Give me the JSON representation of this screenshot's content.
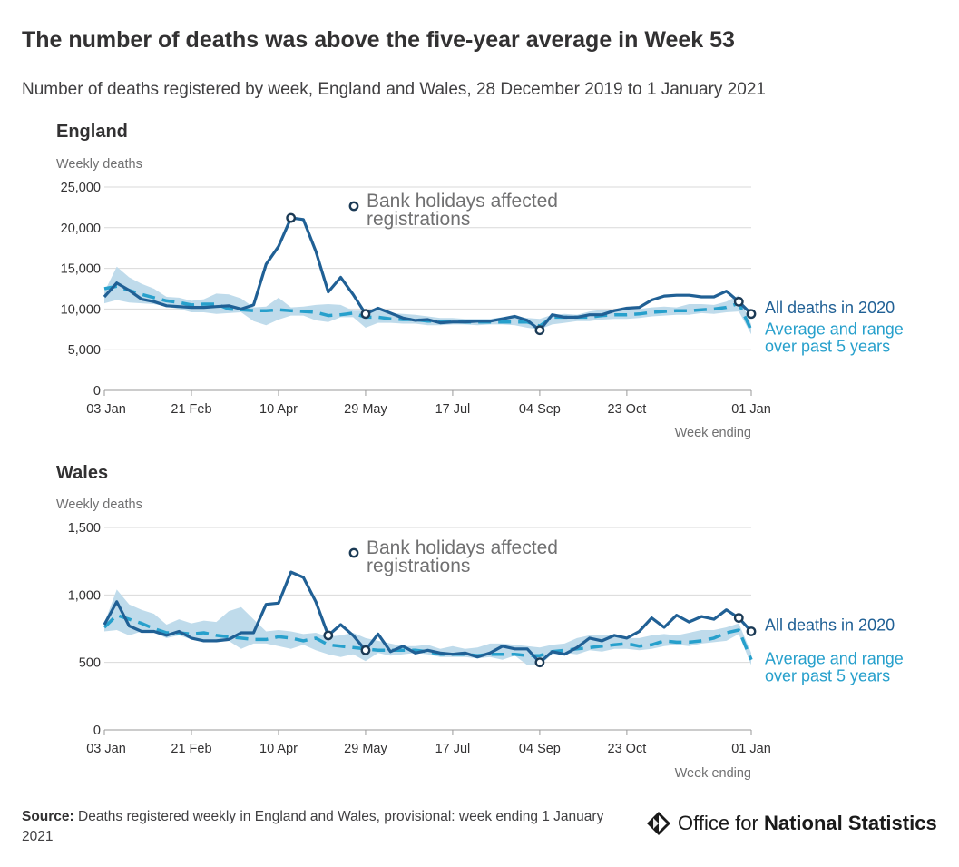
{
  "header": {
    "title": "The number of deaths was above the five-year average in Week 53",
    "subtitle": "Number of deaths registered by week, England and Wales, 28 December 2019 to 1 January 2021"
  },
  "footer": {
    "source_label": "Source:",
    "source_text": "Deaths registered weekly in England and Wales, provisional: week ending 1 January 2021",
    "logo_text_prefix": "Office for ",
    "logo_text_bold": "National Statistics"
  },
  "colors": {
    "main_line": "#206095",
    "average_line": "#27a0cc",
    "range_band": "#bcd9ea",
    "grid": "#d9d9d9"
  },
  "chart_data": [
    {
      "type": "line",
      "title": "England",
      "ylabel": "Weekly deaths",
      "xlabel": "Week ending",
      "ylim": [
        0,
        25000
      ],
      "yticks": [
        0,
        5000,
        10000,
        15000,
        20000,
        25000
      ],
      "ytick_labels": [
        "0",
        "5,000",
        "10,000",
        "15,000",
        "20,000",
        "25,000"
      ],
      "xtick_labels": [
        "03 Jan",
        "21 Feb",
        "10 Apr",
        "29 May",
        "17 Jul",
        "04 Sep",
        "23 Oct",
        "01 Jan"
      ],
      "xtick_weeks": [
        1,
        8,
        15,
        22,
        29,
        36,
        43,
        53
      ],
      "weeks": 53,
      "legend": "inline-right",
      "annotation": "Bank holidays affected registrations",
      "highlighted_weeks": [
        16,
        22,
        36,
        52,
        53
      ],
      "series": [
        {
          "name": "All deaths in 2020",
          "values": [
            11500,
            13200,
            12300,
            11200,
            10900,
            10400,
            10300,
            10200,
            10200,
            10300,
            10400,
            10000,
            10500,
            15500,
            17700,
            21200,
            21000,
            17100,
            12100,
            13900,
            11800,
            9400,
            10100,
            9500,
            8900,
            8600,
            8700,
            8300,
            8400,
            8400,
            8500,
            8500,
            8800,
            9100,
            8600,
            7400,
            9300,
            9000,
            9000,
            9300,
            9300,
            9800,
            10100,
            10200,
            11100,
            11600,
            11700,
            11700,
            11500,
            11500,
            12200,
            10900,
            9400
          ]
        },
        {
          "name": "Average and range over past 5 years",
          "values": [
            12500,
            12800,
            12300,
            11800,
            11400,
            11000,
            10800,
            10500,
            10600,
            10600,
            10000,
            9900,
            9800,
            9800,
            9900,
            9800,
            9700,
            9600,
            9200,
            9300,
            9500,
            9000,
            9000,
            8800,
            8700,
            8700,
            8500,
            8500,
            8500,
            8400,
            8400,
            8400,
            8400,
            8400,
            8400,
            7900,
            9000,
            9000,
            9000,
            9000,
            9200,
            9300,
            9300,
            9400,
            9600,
            9700,
            9800,
            9800,
            9900,
            10000,
            10200,
            10700,
            7400
          ],
          "range_low": [
            10700,
            11100,
            10800,
            10700,
            10600,
            10300,
            10000,
            9600,
            9600,
            9400,
            9500,
            9600,
            8500,
            8000,
            8700,
            9200,
            9200,
            8600,
            8400,
            9000,
            9000,
            7700,
            8300,
            8300,
            8200,
            8200,
            8000,
            8000,
            8100,
            8100,
            8000,
            8100,
            8100,
            8000,
            7700,
            7500,
            8100,
            8300,
            8500,
            8500,
            8700,
            8800,
            8800,
            8900,
            9100,
            9200,
            9300,
            9300,
            9500,
            9400,
            9600,
            9700,
            6900
          ],
          "range_high": [
            12100,
            15200,
            13900,
            13100,
            12500,
            11500,
            11400,
            11000,
            11200,
            11900,
            11800,
            11300,
            10200,
            10300,
            11400,
            10200,
            10300,
            10500,
            10600,
            10500,
            9800,
            9800,
            9900,
            9500,
            9400,
            9300,
            9100,
            8900,
            8900,
            8800,
            8800,
            8800,
            9000,
            9000,
            8900,
            8800,
            9300,
            9400,
            9300,
            9700,
            9900,
            9800,
            9900,
            10000,
            10200,
            10300,
            10200,
            10600,
            10600,
            10500,
            10900,
            11700,
            8100
          ]
        }
      ]
    },
    {
      "type": "line",
      "title": "Wales",
      "ylabel": "Weekly deaths",
      "xlabel": "Week ending",
      "ylim": [
        0,
        1500
      ],
      "yticks": [
        0,
        500,
        1000,
        1500
      ],
      "ytick_labels": [
        "0",
        "500",
        "1,000",
        "1,500"
      ],
      "xtick_labels": [
        "03 Jan",
        "21 Feb",
        "10 Apr",
        "29 May",
        "17 Jul",
        "04 Sep",
        "23 Oct",
        "01 Jan"
      ],
      "xtick_weeks": [
        1,
        8,
        15,
        22,
        29,
        36,
        43,
        53
      ],
      "weeks": 53,
      "legend": "inline-right",
      "annotation": "Bank holidays affected registrations",
      "highlighted_weeks": [
        19,
        22,
        36,
        52,
        53
      ],
      "series": [
        {
          "name": "All deaths in 2020",
          "values": [
            780,
            950,
            770,
            730,
            730,
            700,
            730,
            680,
            660,
            660,
            670,
            720,
            720,
            930,
            940,
            1170,
            1130,
            950,
            700,
            780,
            700,
            590,
            710,
            580,
            620,
            570,
            590,
            570,
            560,
            570,
            540,
            570,
            620,
            600,
            600,
            500,
            580,
            560,
            610,
            680,
            660,
            700,
            680,
            730,
            830,
            760,
            850,
            800,
            840,
            820,
            890,
            830,
            730
          ]
        },
        {
          "name": "Average and range over past 5 years",
          "values": [
            760,
            850,
            820,
            790,
            750,
            720,
            720,
            710,
            720,
            700,
            690,
            680,
            670,
            670,
            690,
            680,
            660,
            680,
            630,
            620,
            610,
            600,
            590,
            590,
            590,
            590,
            580,
            560,
            560,
            560,
            550,
            560,
            560,
            560,
            550,
            550,
            580,
            590,
            600,
            610,
            620,
            630,
            640,
            620,
            630,
            660,
            650,
            650,
            660,
            680,
            720,
            740,
            520
          ],
          "range_low": [
            730,
            740,
            700,
            730,
            720,
            680,
            700,
            670,
            650,
            650,
            660,
            600,
            640,
            640,
            620,
            600,
            630,
            590,
            560,
            540,
            560,
            510,
            570,
            550,
            560,
            570,
            560,
            540,
            540,
            540,
            530,
            540,
            520,
            550,
            480,
            480,
            560,
            570,
            560,
            590,
            580,
            600,
            600,
            590,
            600,
            620,
            630,
            620,
            640,
            650,
            660,
            710,
            480
          ],
          "range_high": [
            790,
            1040,
            930,
            890,
            860,
            780,
            820,
            790,
            810,
            800,
            880,
            910,
            820,
            730,
            740,
            730,
            710,
            720,
            690,
            700,
            720,
            680,
            660,
            640,
            620,
            620,
            630,
            600,
            620,
            600,
            610,
            640,
            640,
            630,
            620,
            610,
            630,
            640,
            680,
            700,
            700,
            700,
            680,
            680,
            700,
            710,
            700,
            720,
            740,
            740,
            760,
            790,
            570
          ]
        }
      ]
    }
  ]
}
